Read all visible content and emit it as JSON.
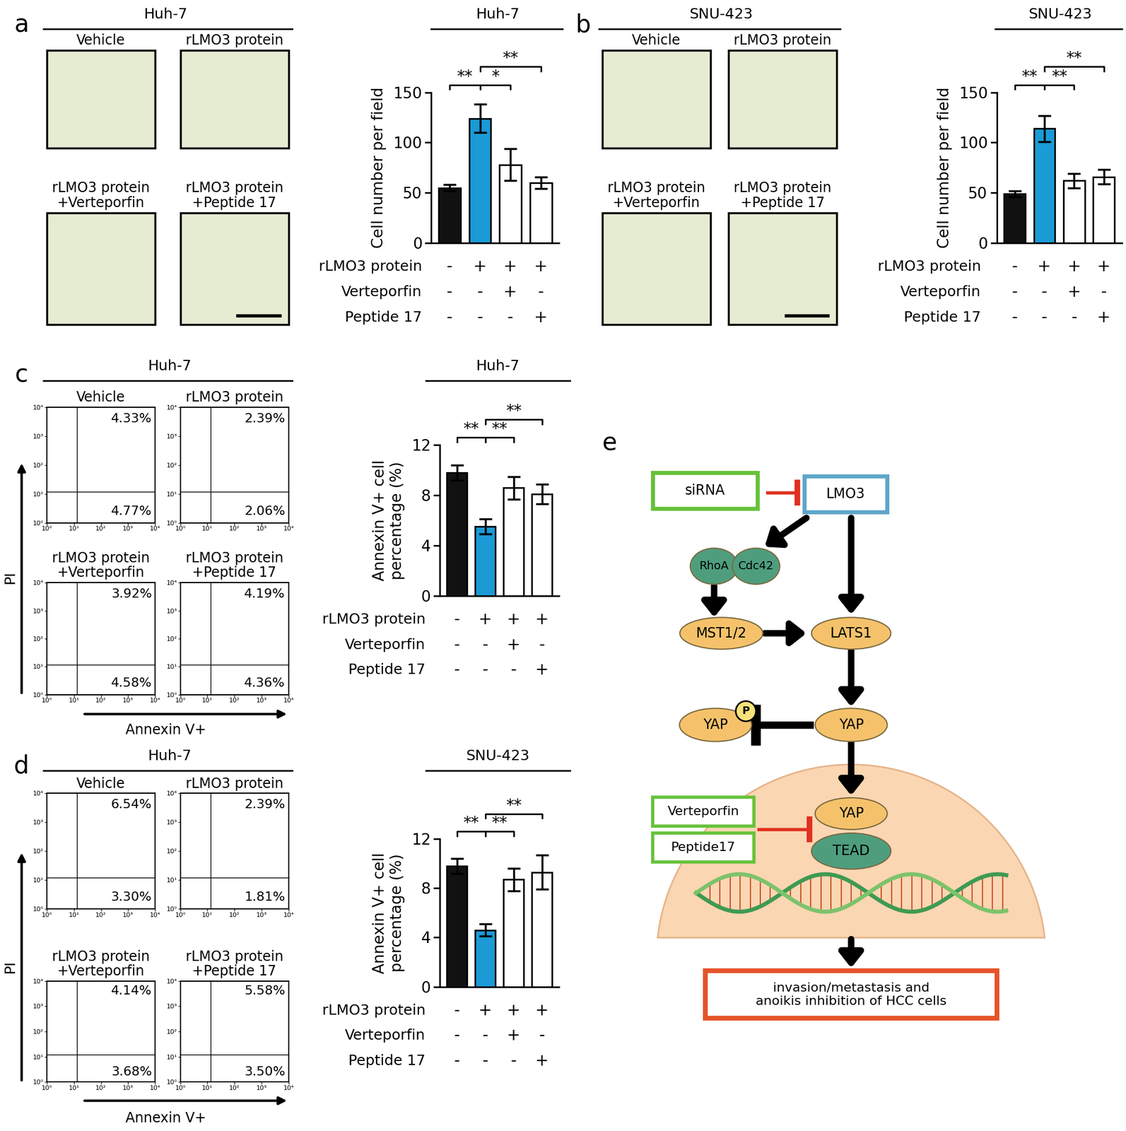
{
  "panel_labels": [
    "a",
    "b",
    "c",
    "d",
    "e"
  ],
  "micrographs": [
    {
      "header": "Huh-7",
      "images": [
        "Vehicle",
        "rLMO3 protein",
        "rLMO3 protein\n+Verteporfin",
        "rLMO3 protein\n+Peptide 17"
      ]
    },
    {
      "header": "SNU-423",
      "images": [
        "Vehicle",
        "rLMO3 protein",
        "rLMO3 protein\n+Verteporfin",
        "rLMO3 protein\n+Peptide 17"
      ]
    }
  ],
  "flow": [
    {
      "header": "Huh-7",
      "xlabel": "Annexin V+",
      "ylabel": "PI",
      "xlim": [
        1,
        10000
      ],
      "ylim": [
        1,
        10000
      ],
      "xticks": [
        {
          "value": 1,
          "label": "10⁰"
        },
        {
          "value": 10,
          "label": "10¹"
        },
        {
          "value": 100,
          "label": "10²"
        },
        {
          "value": 1000,
          "label": "10³"
        },
        {
          "value": 10000,
          "label": "10⁴"
        }
      ],
      "yticks": [
        {
          "value": 1,
          "label": "10⁰"
        },
        {
          "value": 10,
          "label": "10¹"
        },
        {
          "value": 100,
          "label": "10²"
        },
        {
          "value": 1000,
          "label": "10³"
        },
        {
          "value": 10000,
          "label": "10⁴"
        }
      ],
      "gates": {
        "x": 13,
        "y": 12
      },
      "panels": [
        {
          "title": "Vehicle",
          "upper_right": "4.33%",
          "lower_right": "4.77%"
        },
        {
          "title": "rLMO3 protein",
          "upper_right": "2.39%",
          "lower_right": "2.06%"
        },
        {
          "title": "rLMO3 protein\n+Verteporfin",
          "upper_right": "3.92%",
          "lower_right": "4.58%"
        },
        {
          "title": "rLMO3 protein\n+Peptide 17",
          "upper_right": "4.19%",
          "lower_right": "4.36%"
        }
      ]
    },
    {
      "header": "Huh-7",
      "xlabel": "Annexin V+",
      "ylabel": "PI",
      "xlim": [
        1,
        10000
      ],
      "ylim": [
        1,
        10000
      ],
      "xticks": [
        {
          "value": 1,
          "label": "10⁰"
        },
        {
          "value": 10,
          "label": "10¹"
        },
        {
          "value": 100,
          "label": "10²"
        },
        {
          "value": 1000,
          "label": "10³"
        },
        {
          "value": 10000,
          "label": "10⁴"
        }
      ],
      "yticks": [
        {
          "value": 1,
          "label": "10⁰"
        },
        {
          "value": 10,
          "label": "10¹"
        },
        {
          "value": 100,
          "label": "10²"
        },
        {
          "value": 1000,
          "label": "10³"
        },
        {
          "value": 10000,
          "label": "10⁴"
        }
      ],
      "gates": {
        "x": 13,
        "y": 12
      },
      "panels": [
        {
          "title": "Vehicle",
          "upper_right": "6.54%",
          "lower_right": "3.30%"
        },
        {
          "title": "rLMO3 protein",
          "upper_right": "2.39%",
          "lower_right": "1.81%"
        },
        {
          "title": "rLMO3 protein\n+Verteporfin",
          "upper_right": "4.14%",
          "lower_right": "3.68%"
        },
        {
          "title": "rLMO3 protein\n+Peptide 17",
          "upper_right": "5.58%",
          "lower_right": "3.50%"
        }
      ]
    }
  ],
  "chart_data": [
    {
      "type": "bar",
      "title": "Huh-7",
      "ylabel": "Cell number per field",
      "categories": [
        null,
        null,
        null,
        null
      ],
      "values": [
        55,
        124,
        78,
        60
      ],
      "errors": [
        3,
        14,
        16,
        6
      ],
      "colors": [
        "#111111",
        "#1b9ad6",
        "#ffffff",
        "#ffffff"
      ],
      "ylim": [
        0,
        150
      ],
      "yticks": [
        0,
        50,
        100,
        150
      ],
      "significance": [
        {
          "from": 0,
          "to": 1,
          "label": "**"
        },
        {
          "from": 1,
          "to": 2,
          "label": "*"
        },
        {
          "from": 1,
          "to": 3,
          "label": "**"
        }
      ],
      "conditions": [
        {
          "name": "rLMO3 protein",
          "values": [
            "-",
            "+",
            "+",
            "+"
          ]
        },
        {
          "name": "Verteporfin",
          "values": [
            "-",
            "-",
            "+",
            "-"
          ]
        },
        {
          "name": "Peptide 17",
          "values": [
            "-",
            "-",
            "-",
            "+"
          ]
        }
      ]
    },
    {
      "type": "bar",
      "title": "SNU-423",
      "ylabel": "Cell number per field",
      "categories": [
        null,
        null,
        null,
        null
      ],
      "values": [
        49,
        114,
        62,
        66
      ],
      "errors": [
        3,
        13,
        7,
        7
      ],
      "colors": [
        "#111111",
        "#1b9ad6",
        "#ffffff",
        "#ffffff"
      ],
      "ylim": [
        0,
        150
      ],
      "yticks": [
        0,
        50,
        100,
        150
      ],
      "significance": [
        {
          "from": 0,
          "to": 1,
          "label": "**"
        },
        {
          "from": 1,
          "to": 2,
          "label": "**"
        },
        {
          "from": 1,
          "to": 3,
          "label": "**"
        }
      ],
      "conditions": [
        {
          "name": "rLMO3 protein",
          "values": [
            "-",
            "+",
            "+",
            "+"
          ]
        },
        {
          "name": "Verteporfin",
          "values": [
            "-",
            "-",
            "+",
            "-"
          ]
        },
        {
          "name": "Peptide 17",
          "values": [
            "-",
            "-",
            "-",
            "+"
          ]
        }
      ]
    },
    {
      "type": "bar",
      "title": "Huh-7",
      "ylabel": "Annexin V+ cell\npercentage (%)",
      "categories": [
        null,
        null,
        null,
        null
      ],
      "values": [
        9.8,
        5.5,
        8.6,
        8.1
      ],
      "errors": [
        0.6,
        0.6,
        0.9,
        0.8
      ],
      "colors": [
        "#111111",
        "#1b9ad6",
        "#ffffff",
        "#ffffff"
      ],
      "ylim": [
        0,
        12
      ],
      "yticks": [
        0,
        4,
        8,
        12
      ],
      "significance": [
        {
          "from": 0,
          "to": 1,
          "label": "**"
        },
        {
          "from": 1,
          "to": 2,
          "label": "**"
        },
        {
          "from": 1,
          "to": 3,
          "label": "**"
        }
      ],
      "conditions": [
        {
          "name": "rLMO3 protein",
          "values": [
            "-",
            "+",
            "+",
            "+"
          ]
        },
        {
          "name": "Verteporfin",
          "values": [
            "-",
            "-",
            "+",
            "-"
          ]
        },
        {
          "name": "Peptide 17",
          "values": [
            "-",
            "-",
            "-",
            "+"
          ]
        }
      ]
    },
    {
      "type": "bar",
      "title": "SNU-423",
      "ylabel": "Annexin V+ cell\npercentage (%)",
      "categories": [
        null,
        null,
        null,
        null
      ],
      "values": [
        9.8,
        4.6,
        8.7,
        9.3
      ],
      "errors": [
        0.6,
        0.5,
        0.9,
        1.4
      ],
      "colors": [
        "#111111",
        "#1b9ad6",
        "#ffffff",
        "#ffffff"
      ],
      "ylim": [
        0,
        12
      ],
      "yticks": [
        0,
        4,
        8,
        12
      ],
      "significance": [
        {
          "from": 0,
          "to": 1,
          "label": "**"
        },
        {
          "from": 1,
          "to": 2,
          "label": "**"
        },
        {
          "from": 1,
          "to": 3,
          "label": "**"
        }
      ],
      "conditions": [
        {
          "name": "rLMO3 protein",
          "values": [
            "-",
            "+",
            "+",
            "+"
          ]
        },
        {
          "name": "Verteporfin",
          "values": [
            "-",
            "-",
            "+",
            "-"
          ]
        },
        {
          "name": "Peptide 17",
          "values": [
            "-",
            "-",
            "-",
            "+"
          ]
        }
      ]
    }
  ],
  "diagram": {
    "nodes": {
      "sirna": "siRNA",
      "lmo3": "LMO3",
      "rhoa": "RhoA",
      "cdc42": "Cdc42",
      "mst": "MST1/2",
      "lats": "LATS1",
      "yap_p": "YAP",
      "p": "P",
      "yap": "YAP",
      "yap_n": "YAP",
      "tead": "TEAD",
      "verteporfin": "Verteporfin",
      "peptide": "Peptide17",
      "outcome": "invasion/metastasis and\nanoikis inhibition of HCC cells"
    }
  }
}
